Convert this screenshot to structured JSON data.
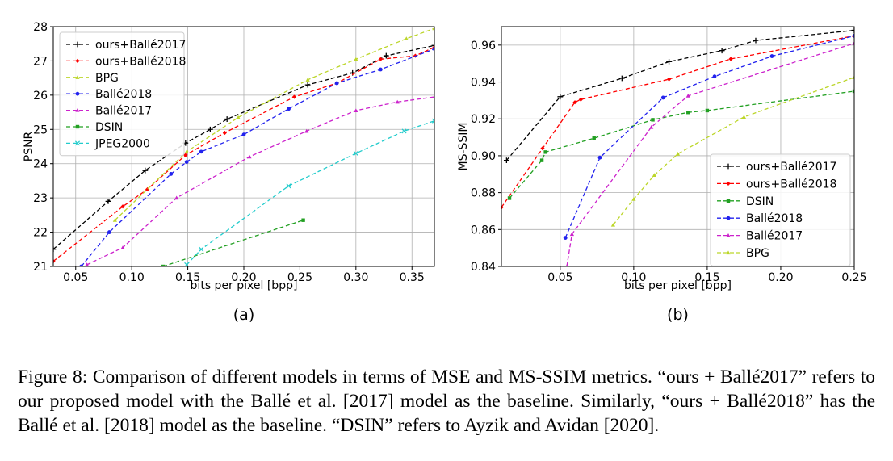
{
  "chart_data": [
    {
      "type": "line",
      "panel_label": "(a)",
      "xlabel": "bits per pixel [bpp]",
      "ylabel": "PSNR",
      "xlim": [
        0.03,
        0.37
      ],
      "ylim": [
        21,
        28
      ],
      "xticks": [
        0.05,
        0.1,
        0.15,
        0.2,
        0.25,
        0.3,
        0.35
      ],
      "xtick_labels": [
        "0.05",
        "0.10",
        "0.15",
        "0.20",
        "0.25",
        "0.30",
        "0.35"
      ],
      "yticks": [
        21,
        22,
        23,
        24,
        25,
        26,
        27,
        28
      ],
      "ytick_labels": [
        "21",
        "22",
        "23",
        "24",
        "25",
        "26",
        "27",
        "28"
      ],
      "grid": true,
      "legend_position": "top-left",
      "series": [
        {
          "name": "ours+Ballé2017",
          "color": "#000000",
          "marker": "plus",
          "x": [
            0.03,
            0.079,
            0.112,
            0.148,
            0.17,
            0.185,
            0.257,
            0.297,
            0.327,
            0.37
          ],
          "y": [
            21.5,
            22.9,
            23.8,
            24.6,
            25.0,
            25.3,
            26.3,
            26.65,
            27.15,
            27.45
          ]
        },
        {
          "name": "ours+Ballé2018",
          "color": "#ff0000",
          "marker": "diamond",
          "x": [
            0.03,
            0.092,
            0.114,
            0.148,
            0.183,
            0.245,
            0.283,
            0.322,
            0.353,
            0.37
          ],
          "y": [
            21.15,
            22.75,
            23.25,
            24.25,
            24.9,
            25.95,
            26.35,
            27.05,
            27.15,
            27.4
          ]
        },
        {
          "name": "BPG",
          "color": "#bcd62a",
          "marker": "triangle",
          "x": [
            0.085,
            0.149,
            0.195,
            0.257,
            0.3,
            0.345,
            0.37
          ],
          "y": [
            22.35,
            24.35,
            25.35,
            26.45,
            27.05,
            27.65,
            27.95
          ]
        },
        {
          "name": "Ballé2018",
          "color": "#2222ee",
          "marker": "circle",
          "x": [
            0.055,
            0.08,
            0.135,
            0.149,
            0.162,
            0.2,
            0.24,
            0.283,
            0.322,
            0.37
          ],
          "y": [
            21.0,
            22.0,
            23.7,
            24.05,
            24.35,
            24.85,
            25.6,
            26.35,
            26.75,
            27.35
          ]
        },
        {
          "name": "Ballé2017",
          "color": "#cc22cc",
          "marker": "triangle",
          "x": [
            0.06,
            0.092,
            0.14,
            0.205,
            0.256,
            0.3,
            0.337,
            0.37
          ],
          "y": [
            21.05,
            21.55,
            23.0,
            24.2,
            24.95,
            25.55,
            25.8,
            25.95
          ]
        },
        {
          "name": "DSIN",
          "color": "#22a022",
          "marker": "square",
          "x": [
            0.128,
            0.253
          ],
          "y": [
            21.0,
            22.35
          ]
        },
        {
          "name": "JPEG2000",
          "color": "#22cccc",
          "marker": "x",
          "x": [
            0.149,
            0.162,
            0.24,
            0.3,
            0.343,
            0.37
          ],
          "y": [
            21.05,
            21.5,
            23.35,
            24.3,
            24.95,
            25.25
          ]
        }
      ]
    },
    {
      "type": "line",
      "panel_label": "(b)",
      "xlabel": "bits per pixel [bpp]",
      "ylabel": "MS-SSIM",
      "xlim": [
        0.01,
        0.25
      ],
      "ylim": [
        0.84,
        0.97
      ],
      "xticks": [
        0.05,
        0.1,
        0.15,
        0.2,
        0.25
      ],
      "xtick_labels": [
        "0.05",
        "0.10",
        "0.15",
        "0.20",
        "0.25"
      ],
      "yticks": [
        0.84,
        0.86,
        0.88,
        0.9,
        0.92,
        0.94,
        0.96
      ],
      "ytick_labels": [
        "0.84",
        "0.86",
        "0.88",
        "0.90",
        "0.92",
        "0.94",
        "0.96"
      ],
      "grid": true,
      "legend_position": "bottom-right",
      "series": [
        {
          "name": "ours+Ballé2017",
          "color": "#000000",
          "marker": "plus",
          "x": [
            0.0135,
            0.05,
            0.092,
            0.124,
            0.16,
            0.183,
            0.25
          ],
          "y": [
            0.8975,
            0.932,
            0.942,
            0.951,
            0.957,
            0.9625,
            0.968
          ]
        },
        {
          "name": "ours+Ballé2018",
          "color": "#ff0000",
          "marker": "diamond",
          "x": [
            0.01,
            0.038,
            0.06,
            0.064,
            0.124,
            0.166,
            0.25
          ],
          "y": [
            0.872,
            0.904,
            0.929,
            0.9305,
            0.9415,
            0.9525,
            0.965
          ]
        },
        {
          "name": "DSIN",
          "color": "#22a022",
          "marker": "square",
          "x": [
            0.0155,
            0.0375,
            0.04,
            0.073,
            0.113,
            0.137,
            0.15,
            0.25
          ],
          "y": [
            0.877,
            0.8975,
            0.902,
            0.9095,
            0.9195,
            0.9235,
            0.9245,
            0.935
          ]
        },
        {
          "name": "Ballé2018",
          "color": "#2222ee",
          "marker": "circle",
          "x": [
            0.0535,
            0.077,
            0.12,
            0.155,
            0.194,
            0.25
          ],
          "y": [
            0.8555,
            0.899,
            0.9315,
            0.943,
            0.954,
            0.965
          ]
        },
        {
          "name": "Ballé2017",
          "color": "#cc22cc",
          "marker": "triangle",
          "x": [
            0.0545,
            0.058,
            0.112,
            0.137,
            0.25
          ],
          "y": [
            0.84,
            0.8575,
            0.9155,
            0.9325,
            0.961
          ]
        },
        {
          "name": "BPG",
          "color": "#bcd62a",
          "marker": "triangle",
          "x": [
            0.086,
            0.1,
            0.114,
            0.13,
            0.175,
            0.25
          ],
          "y": [
            0.8625,
            0.8765,
            0.8895,
            0.901,
            0.921,
            0.9425
          ]
        }
      ]
    }
  ],
  "caption": "Figure 8: Comparison of different models in terms of MSE and MS-SSIM metrics. “ours + Ballé2017” refers to our proposed model with the Ballé et al. [2017] model as the baseline. Similarly, “ours + Ballé2018” has the Ballé et al. [2018] model as the baseline. “DSIN” refers to Ayzik and Avidan [2020]."
}
